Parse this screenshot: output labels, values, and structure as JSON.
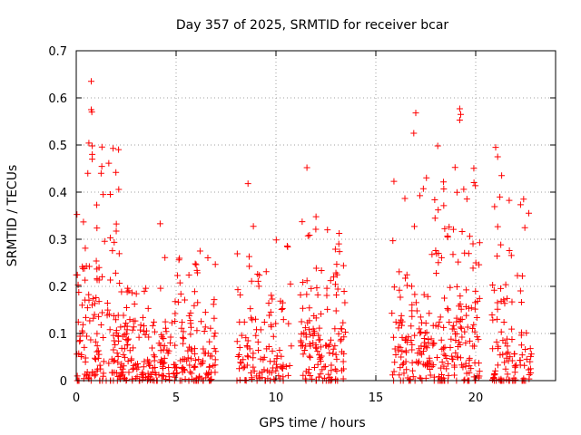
{
  "chart_data": {
    "type": "scatter",
    "title": "Day 357 of 2025, SRMTID for receiver bcar",
    "xlabel": "GPS time / hours",
    "ylabel": "SRMTID / TECUs",
    "xlim": [
      0,
      24
    ],
    "ylim": [
      0,
      0.7
    ],
    "xticks": [
      0,
      5,
      10,
      15,
      20
    ],
    "yticks": [
      0,
      0.1,
      0.2,
      0.3,
      0.4,
      0.5,
      0.6,
      0.7
    ],
    "xtick_labels": [
      "0",
      "5",
      "10",
      "15",
      "20"
    ],
    "ytick_labels": [
      "0",
      "0.1",
      "0.2",
      "0.3",
      "0.4",
      "0.5",
      "0.6",
      "0.7"
    ],
    "grid": true,
    "marker": "+",
    "color": "#ff0000",
    "series": [
      {
        "name": "SRMTID",
        "clusters": [
          {
            "x_range": [
              0.0,
              2.2
            ],
            "y_median": 0.14,
            "y_max": 0.64,
            "count": 150
          },
          {
            "x_range": [
              2.2,
              4.0
            ],
            "y_median": 0.09,
            "y_max": 0.25,
            "count": 110
          },
          {
            "x_range": [
              4.0,
              7.0
            ],
            "y_median": 0.09,
            "y_max": 0.33,
            "count": 170
          },
          {
            "x_range": [
              8.0,
              10.8
            ],
            "y_median": 0.1,
            "y_max": 0.42,
            "count": 120
          },
          {
            "x_range": [
              11.2,
              13.5
            ],
            "y_median": 0.12,
            "y_max": 0.45,
            "count": 140
          },
          {
            "x_range": [
              15.8,
              18.0
            ],
            "y_median": 0.1,
            "y_max": 0.57,
            "count": 130
          },
          {
            "x_range": [
              18.0,
              20.2
            ],
            "y_median": 0.17,
            "y_max": 0.58,
            "count": 150
          },
          {
            "x_range": [
              20.8,
              22.8
            ],
            "y_median": 0.1,
            "y_max": 0.5,
            "count": 110
          }
        ],
        "notable_points": [
          {
            "x": 0.75,
            "y": 0.635
          },
          {
            "x": 0.75,
            "y": 0.575
          },
          {
            "x": 0.78,
            "y": 0.57
          },
          {
            "x": 0.8,
            "y": 0.498
          },
          {
            "x": 0.8,
            "y": 0.48
          },
          {
            "x": 0.8,
            "y": 0.47
          },
          {
            "x": 1.35,
            "y": 0.395
          },
          {
            "x": 4.2,
            "y": 0.333
          },
          {
            "x": 6.2,
            "y": 0.275
          },
          {
            "x": 8.6,
            "y": 0.418
          },
          {
            "x": 11.55,
            "y": 0.452
          },
          {
            "x": 17.0,
            "y": 0.568
          },
          {
            "x": 16.9,
            "y": 0.525
          },
          {
            "x": 18.1,
            "y": 0.498
          },
          {
            "x": 19.2,
            "y": 0.577
          },
          {
            "x": 19.25,
            "y": 0.565
          },
          {
            "x": 19.2,
            "y": 0.553
          },
          {
            "x": 21.0,
            "y": 0.495
          },
          {
            "x": 21.1,
            "y": 0.475
          },
          {
            "x": 21.3,
            "y": 0.435
          },
          {
            "x": 22.4,
            "y": 0.385
          }
        ]
      }
    ]
  }
}
